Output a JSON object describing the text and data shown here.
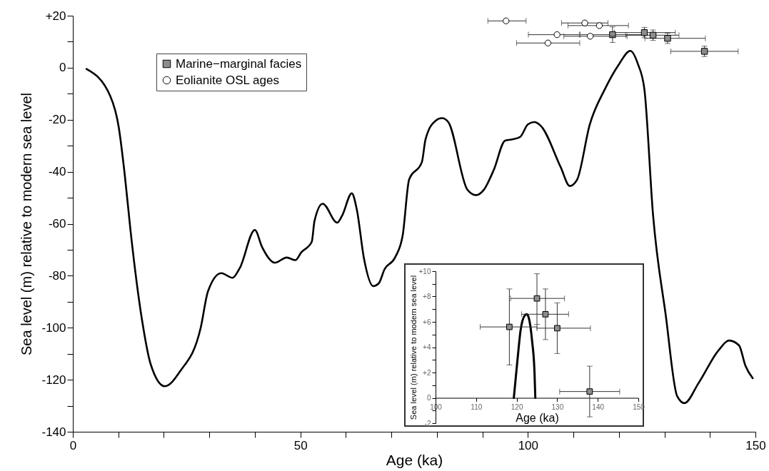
{
  "chart_data": [
    {
      "type": "line",
      "xlabel": "Age (ka)",
      "ylabel": "Sea level (m) relative to modern sea level",
      "xlim": [
        0,
        150
      ],
      "xticks": [
        0,
        {
          "value": 10,
          "label": null
        },
        {
          "value": 20,
          "label": null
        },
        {
          "value": 30,
          "label": null
        },
        {
          "value": 40,
          "label": null
        },
        50,
        {
          "value": 60,
          "label": null
        },
        {
          "value": 70,
          "label": null
        },
        {
          "value": 80,
          "label": null
        },
        {
          "value": 90,
          "label": null
        },
        100,
        {
          "value": 110,
          "label": null
        },
        {
          "value": 120,
          "label": null
        },
        {
          "value": 130,
          "label": null
        },
        {
          "value": 140,
          "label": null
        },
        150
      ],
      "ylim": [
        -140,
        20
      ],
      "yticks": [
        -140,
        {
          "value": -130,
          "label": null
        },
        -120,
        {
          "value": -110,
          "label": null
        },
        -100,
        {
          "value": -90,
          "label": null
        },
        -80,
        {
          "value": -70,
          "label": null
        },
        -60,
        {
          "value": -50,
          "label": null
        },
        -40,
        {
          "value": -30,
          "label": null
        },
        -20,
        {
          "value": -10,
          "label": null
        },
        0,
        {
          "value": 10,
          "label": null
        },
        {
          "value": 20,
          "label": "+20"
        }
      ],
      "legend": "top left",
      "series": [
        {
          "type": "line",
          "color": "#000000",
          "x": [
            3.0,
            8.2,
            10.1,
            11.4,
            12.7,
            15.2,
            17.1,
            20.2,
            23.6,
            28.1,
            29.7,
            32.6,
            35.1,
            36.7,
            40.0,
            41.6,
            44.4,
            47.0,
            48.9,
            50.2,
            52.5,
            53.1,
            54.9,
            58.1,
            59.2,
            61.3,
            62.4,
            64.0,
            66.0,
            67.2,
            68.5,
            70.8,
            72.5,
            73.9,
            76.7,
            77.5,
            79.7,
            81.1,
            82.5,
            86.7,
            88.6,
            90.3,
            92.5,
            95.0,
            96.4,
            98.3,
            100.0,
            101.4,
            102.8,
            107.2,
            109.2,
            110.8,
            113.6,
            116.9,
            120.0,
            122.5,
            124.2,
            125.6,
            127.5,
            130.3,
            132.8,
            134.4,
            137.5,
            141.9,
            144.2,
            146.4,
            147.8,
            149.4
          ],
          "values": [
            -0.5,
            -10.8,
            -23,
            -41,
            -63,
            -97,
            -114,
            -122.5,
            -116.7,
            -100,
            -86,
            -79,
            -80.8,
            -77,
            -62.4,
            -69,
            -75,
            -73,
            -74,
            -71,
            -67,
            -59,
            -52.3,
            -59.6,
            -56.8,
            -48.3,
            -54.5,
            -73.6,
            -84,
            -83,
            -77.5,
            -73,
            -64.3,
            -43,
            -36.3,
            -27.6,
            -20.4,
            -19.4,
            -20.9,
            -46.9,
            -49,
            -47,
            -39.3,
            -28,
            -27.6,
            -26.6,
            -21.8,
            -20.9,
            -22.3,
            -38.2,
            -45.5,
            -43.1,
            -21.8,
            -8.3,
            1.3,
            6.5,
            1.3,
            -8.3,
            -56.6,
            -95.3,
            -126.3,
            -129,
            -121.3,
            -108.7,
            -104.9,
            -106.8,
            -114.6,
            -119.4
          ]
        },
        {
          "type": "scatter",
          "name": "Marine−marginal facies",
          "color": "#8c8c8c",
          "marker": "square",
          "x": [
            118.6,
            125.6,
            127.5,
            130.7,
            138.8
          ],
          "values": [
            12.7,
            13.5,
            12.5,
            11.3,
            6.3
          ],
          "errors": [
            3,
            2,
            2,
            2,
            2
          ],
          "xerrors": [
            [
              111.5,
              125.5
            ],
            [
              119,
              132.4
            ],
            [
              121.5,
              133.2
            ],
            [
              125.7,
              139
            ],
            [
              131.4,
              146.2
            ]
          ]
        },
        {
          "type": "scatter",
          "name": "Eolianite OSL ages",
          "color": "#ffffff",
          "marker": "circle",
          "x": [
            95.2,
            112.5,
            115.7,
            106.4,
            113.7,
            104.4
          ],
          "values": [
            18,
            17.2,
            16.2,
            12.7,
            12.1,
            9.5
          ],
          "xerrors": [
            [
              91.2,
              99.6
            ],
            [
              107.4,
              117.6
            ],
            [
              108.8,
              122.1
            ],
            [
              100.1,
              111.3
            ],
            [
              107.9,
              121.8
            ],
            [
              97.5,
              111.4
            ]
          ]
        }
      ]
    },
    {
      "type": "line",
      "xlabel": "Age (ka)",
      "ylabel": "Sea level (m) relative to modern sea level",
      "xlim": [
        100,
        150
      ],
      "xticks": [
        100,
        110,
        120,
        130,
        140,
        150
      ],
      "ylim": [
        -2,
        10
      ],
      "yticks": [
        -2,
        {
          "value": -1,
          "label": null
        },
        0,
        {
          "value": 1,
          "label": null
        },
        {
          "value": 2,
          "label": "+2"
        },
        {
          "value": 3,
          "label": null
        },
        {
          "value": 4,
          "label": "+4"
        },
        {
          "value": 5,
          "label": null
        },
        {
          "value": 6,
          "label": "+6"
        },
        {
          "value": 7,
          "label": null
        },
        {
          "value": 8,
          "label": "+8"
        },
        {
          "value": 9,
          "label": null
        },
        {
          "value": 10,
          "label": "+10"
        }
      ],
      "series": [
        {
          "type": "line",
          "color": "#000000",
          "x": [
            119.3,
            120.2,
            121,
            122,
            122.5,
            123,
            123.8,
            124.4,
            124.6
          ],
          "values": [
            0,
            3,
            5.4,
            6.5,
            6.6,
            6.3,
            4.5,
            2,
            0
          ]
        },
        {
          "type": "scatter",
          "color": "#8c8c8c",
          "marker": "square",
          "x": [
            118.2,
            125,
            127.1,
            130,
            138
          ],
          "values": [
            5.6,
            7.85,
            6.6,
            5.5,
            0.5
          ],
          "errors": [
            [
              2.6,
              8.6
            ],
            [
              5.8,
              9.8
            ],
            [
              4.6,
              8.6
            ],
            [
              3.5,
              7.5
            ],
            [
              -1.5,
              2.5
            ]
          ],
          "xerrors": [
            [
              111,
              125
            ],
            [
              118.5,
              131.8
            ],
            [
              121.2,
              132.8
            ],
            [
              125,
              138.2
            ],
            [
              130.6,
              145.4
            ]
          ]
        }
      ]
    }
  ]
}
